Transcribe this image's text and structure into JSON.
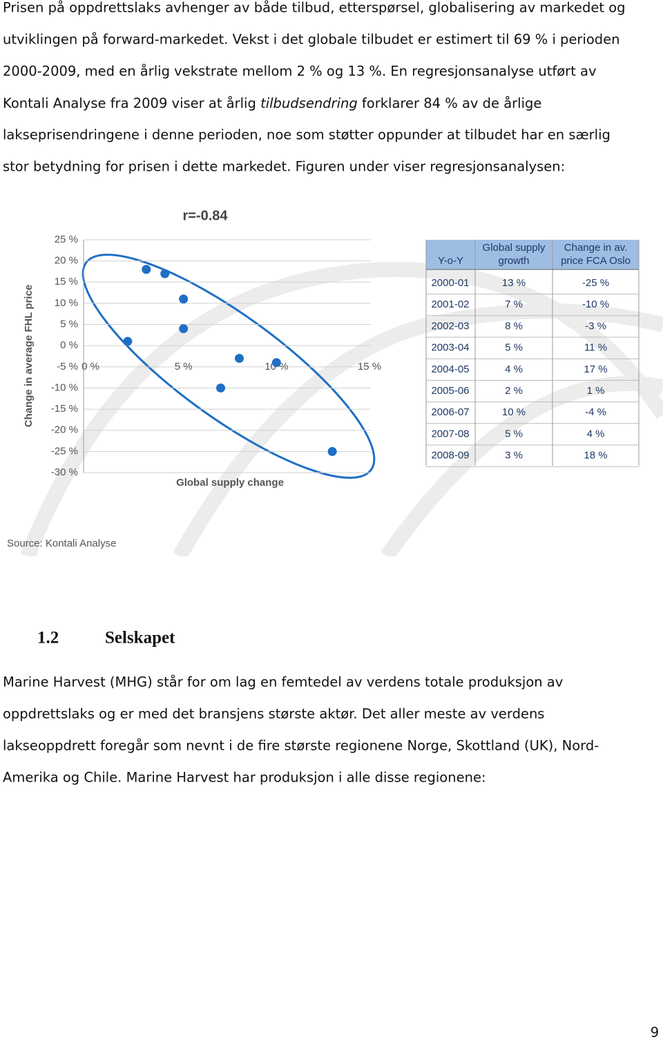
{
  "paragraphs": [
    {
      "lines": [
        "Prisen på oppdrettslaks avhenger av både tilbud, etterspørsel, globalisering av markedet og",
        "utviklingen på forward-markedet. Vekst i det globale tilbudet er estimert til 69 % i perioden",
        "2000-2009, med en årlig vekstrate mellom 2 % og 13 %. En regresjonsanalyse utført av",
        {
          "before": "Kontali Analyse fra 2009 viser at årlig ",
          "italic": "tilbudsendring",
          "after": " forklarer 84 % av de årlige"
        },
        "lakseprisendringene i denne perioden, noe som støtter oppunder at tilbudet har en særlig",
        "stor betydning for prisen i dette markedet. Figuren under viser regresjonsanalysen:"
      ]
    },
    {
      "lines": [
        "Marine Harvest (MHG) står for om lag en femtedel av verdens totale produksjon av",
        "oppdrettslaks og er med det bransjens største aktør. Det aller meste av verdens",
        "lakseoppdrett foregår som nevnt i de fire største regionene Norge, Skottland (UK), Nord-",
        "Amerika og Chile. Marine Harvest har produksjon i alle disse regionene:"
      ]
    }
  ],
  "figure": {
    "chart_data": {
      "type": "scatter",
      "title": "r=-0.84",
      "x_label": "Global supply change",
      "y_label": "Change in average FHL price",
      "x": [
        13,
        7,
        8,
        5,
        4,
        2,
        10,
        5,
        3
      ],
      "values": [
        -25,
        -10,
        -3,
        11,
        17,
        1,
        -4,
        4,
        18
      ],
      "color": "#1f6fc5",
      "xlim": [
        0,
        15
      ],
      "xticks": [
        {
          "value": 0,
          "label": "0 %"
        },
        {
          "value": 5,
          "label": "5 %"
        },
        {
          "value": 10,
          "label": "10 %"
        },
        {
          "value": 15,
          "label": "15 %"
        }
      ],
      "ylim": [
        -30,
        25
      ],
      "yticks": [
        {
          "value": 25,
          "label": "25 %"
        },
        {
          "value": 20,
          "label": "20 %"
        },
        {
          "value": 15,
          "label": "15 %"
        },
        {
          "value": 10,
          "label": "10 %"
        },
        {
          "value": 5,
          "label": "5 %"
        },
        {
          "value": 0,
          "label": "0 %"
        },
        {
          "value": -5,
          "label": "-5 %"
        },
        {
          "value": -10,
          "label": "-10 %"
        },
        {
          "value": -15,
          "label": "-15 %"
        },
        {
          "value": -20,
          "label": "-20 %"
        },
        {
          "value": -25,
          "label": "-25 %"
        },
        {
          "value": -30,
          "label": "-30 %"
        }
      ],
      "grid": true
    },
    "table": {
      "header": [
        "Y-o-Y",
        "Global supply growth",
        "Change in av. price FCA Oslo"
      ],
      "rows": [
        [
          "2000-01",
          "13 %",
          "-25 %"
        ],
        [
          "2001-02",
          "7 %",
          "-10 %"
        ],
        [
          "2002-03",
          "8 %",
          "-3 %"
        ],
        [
          "2003-04",
          "5 %",
          "11 %"
        ],
        [
          "2004-05",
          "4 %",
          "17 %"
        ],
        [
          "2005-06",
          "2 %",
          "1 %"
        ],
        [
          "2006-07",
          "10 %",
          "-4 %"
        ],
        [
          "2007-08",
          "5 %",
          "4 %"
        ],
        [
          "2008-09",
          "3 %",
          "18 %"
        ]
      ]
    },
    "source": "Source: Kontali Analyse"
  },
  "heading": {
    "number": "1.2",
    "title": "Selskapet"
  },
  "page_number": "9"
}
